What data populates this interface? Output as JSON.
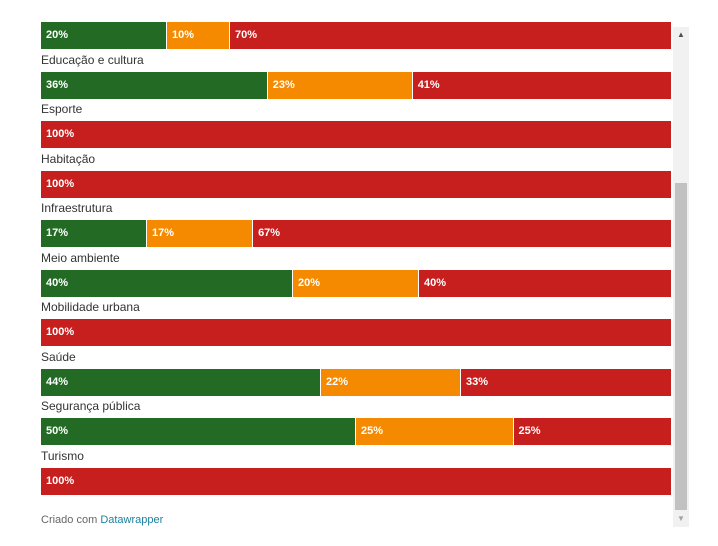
{
  "chart_data": {
    "type": "bar",
    "stacked": true,
    "orientation": "horizontal",
    "categories": [
      "",
      "Educação e cultura",
      "Esporte",
      "Habitação",
      "Infraestrutura",
      "Meio ambiente",
      "Mobilidade urbana",
      "Saúde",
      "Segurança pública",
      "Turismo"
    ],
    "series": [
      {
        "color": "#236b25",
        "values": [
          20,
          36,
          0,
          0,
          17,
          40,
          0,
          44,
          50,
          0
        ]
      },
      {
        "color": "#f58a00",
        "values": [
          10,
          23,
          0,
          0,
          17,
          20,
          0,
          22,
          25,
          0
        ]
      },
      {
        "color": "#c71e1e",
        "values": [
          70,
          41,
          100,
          100,
          67,
          40,
          100,
          33,
          25,
          100
        ]
      }
    ],
    "value_suffix": "%",
    "xlim": [
      0,
      100
    ],
    "grid": false
  },
  "footer": {
    "prefix": "Criado com",
    "link": "Datawrapper"
  },
  "scrollbar": {
    "up_icon": "▲",
    "down_icon": "▼"
  }
}
